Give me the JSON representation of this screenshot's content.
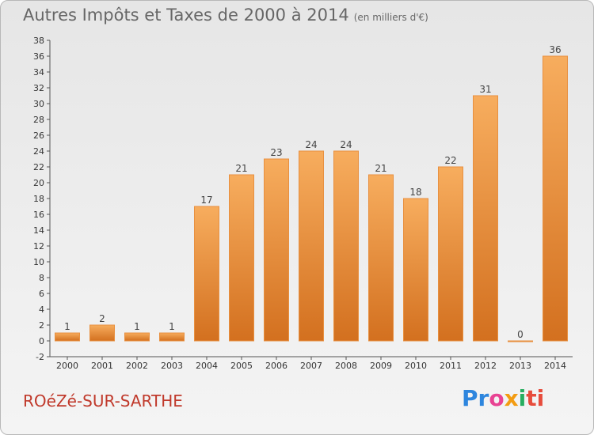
{
  "title": "Autres Impôts et Taxes de 2000 à 2014",
  "subtitle": "(en milliers d'€)",
  "commune": "ROéZé-SUR-SARTHE",
  "logo": [
    "Pr",
    "o",
    "x",
    "i",
    "ti"
  ],
  "colors": {
    "bar": "#f0a050",
    "bar_dark": "#d9772a",
    "frame_bg": "#eeeeee",
    "commune": "#c0392b"
  },
  "chart_data": {
    "type": "bar",
    "categories": [
      "2000",
      "2001",
      "2002",
      "2003",
      "2004",
      "2005",
      "2006",
      "2007",
      "2008",
      "2009",
      "2010",
      "2011",
      "2012",
      "2013",
      "2014"
    ],
    "values": [
      1,
      2,
      1,
      1,
      17,
      21,
      23,
      24,
      24,
      21,
      18,
      22,
      31,
      0,
      36
    ],
    "ylim": [
      -2,
      38
    ],
    "yticks": [
      -2,
      0,
      2,
      4,
      6,
      8,
      10,
      12,
      14,
      16,
      18,
      20,
      22,
      24,
      26,
      28,
      30,
      32,
      34,
      36,
      38
    ],
    "grid": false
  }
}
